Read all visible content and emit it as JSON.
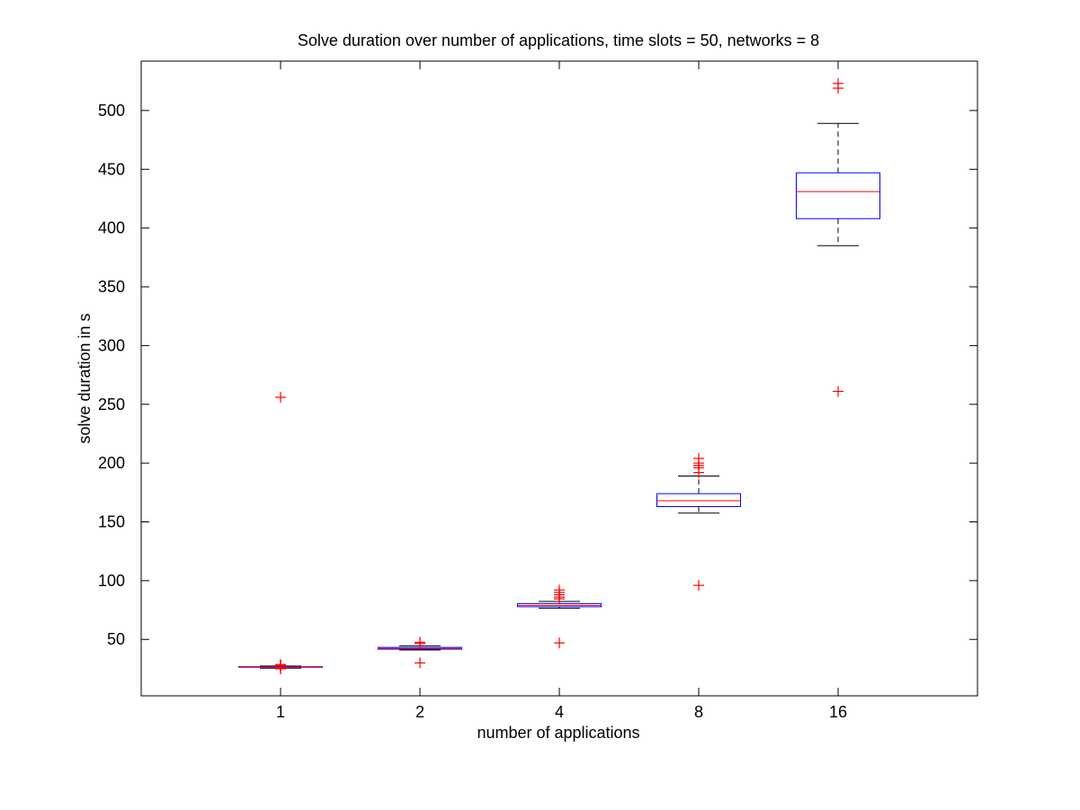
{
  "chart_data": {
    "type": "box",
    "title": "Solve duration over number of applications, time slots = 50, networks = 8",
    "xlabel": "number of applications",
    "ylabel": "solve duration in s",
    "categories": [
      "1",
      "2",
      "4",
      "8",
      "16"
    ],
    "ylim": [
      2,
      542
    ],
    "yticks": [
      50,
      100,
      150,
      200,
      250,
      300,
      350,
      400,
      450,
      500
    ],
    "ytick_labels": [
      "50",
      "100",
      "150",
      "200",
      "250",
      "300",
      "350",
      "400",
      "450",
      "500"
    ],
    "grid": false,
    "legend": "none",
    "boxes": [
      {
        "category": "1",
        "whisker_low": 25.5,
        "q1": 26.3,
        "median": 26.5,
        "q3": 26.8,
        "whisker_high": 27.3,
        "outliers": [
          256,
          28.6,
          28.3,
          28.0,
          27.8,
          25.2,
          25.0
        ]
      },
      {
        "category": "2",
        "whisker_low": 41,
        "q1": 41.7,
        "median": 42.3,
        "q3": 43.2,
        "whisker_high": 44.5,
        "outliers": [
          46.5,
          47.5,
          30
        ]
      },
      {
        "category": "4",
        "whisker_low": 76.5,
        "q1": 77.8,
        "median": 79,
        "q3": 80.5,
        "whisker_high": 82.3,
        "outliers": [
          84.5,
          86,
          88,
          90,
          92,
          47
        ]
      },
      {
        "category": "8",
        "whisker_low": 157.5,
        "q1": 163,
        "median": 168,
        "q3": 174,
        "whisker_high": 189,
        "outliers": [
          192,
          196,
          198,
          200,
          204,
          96
        ]
      },
      {
        "category": "16",
        "whisker_low": 385,
        "q1": 408,
        "median": 431,
        "q3": 447,
        "whisker_high": 489,
        "outliers": [
          519,
          523,
          261
        ]
      }
    ],
    "colors": {
      "box": "#0000ff",
      "median": "#ff0000",
      "whisker": "#000000",
      "outlier": "#ff0000"
    }
  }
}
